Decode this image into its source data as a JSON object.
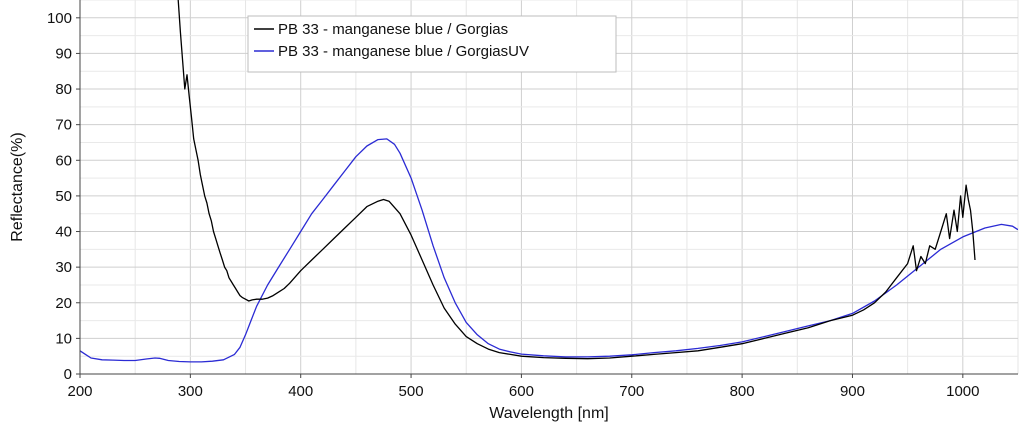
{
  "chart_data": {
    "type": "line",
    "title": "",
    "xlabel": "Wavelength [nm]",
    "ylabel": "Reflectance(%)",
    "xlim": [
      200,
      1050
    ],
    "ylim": [
      0,
      105
    ],
    "x_ticks": [
      200,
      300,
      400,
      500,
      600,
      700,
      800,
      900,
      1000
    ],
    "y_ticks": [
      0,
      10,
      20,
      30,
      40,
      50,
      60,
      70,
      80,
      90,
      100
    ],
    "grid": true,
    "legend_position": "top-left",
    "series": [
      {
        "name": "PB 33 - manganese blue / Gorgias",
        "color": "#000000",
        "points": [
          [
            289,
            105
          ],
          [
            291,
            96
          ],
          [
            293,
            88
          ],
          [
            295,
            80
          ],
          [
            297,
            84
          ],
          [
            299,
            78
          ],
          [
            301,
            72
          ],
          [
            303,
            66
          ],
          [
            305,
            63
          ],
          [
            307,
            60
          ],
          [
            309,
            56
          ],
          [
            311,
            53
          ],
          [
            313,
            50
          ],
          [
            315,
            48
          ],
          [
            317,
            45
          ],
          [
            319,
            43
          ],
          [
            321,
            40
          ],
          [
            323,
            38
          ],
          [
            325,
            36
          ],
          [
            327,
            34
          ],
          [
            329,
            32
          ],
          [
            331,
            30
          ],
          [
            333,
            29
          ],
          [
            335,
            27
          ],
          [
            337,
            26
          ],
          [
            339,
            25
          ],
          [
            341,
            24
          ],
          [
            343,
            23
          ],
          [
            345,
            22
          ],
          [
            347,
            21.5
          ],
          [
            350,
            21
          ],
          [
            353,
            20.5
          ],
          [
            356,
            20.8
          ],
          [
            360,
            21
          ],
          [
            365,
            21
          ],
          [
            370,
            21.3
          ],
          [
            375,
            22
          ],
          [
            380,
            23
          ],
          [
            385,
            24
          ],
          [
            390,
            25.5
          ],
          [
            400,
            29
          ],
          [
            410,
            32
          ],
          [
            420,
            35
          ],
          [
            430,
            38
          ],
          [
            440,
            41
          ],
          [
            450,
            44
          ],
          [
            460,
            47
          ],
          [
            470,
            48.5
          ],
          [
            475,
            49
          ],
          [
            480,
            48.5
          ],
          [
            490,
            45
          ],
          [
            500,
            39
          ],
          [
            510,
            32
          ],
          [
            520,
            25
          ],
          [
            530,
            18.5
          ],
          [
            540,
            14
          ],
          [
            550,
            10.5
          ],
          [
            560,
            8.5
          ],
          [
            570,
            7
          ],
          [
            580,
            6
          ],
          [
            590,
            5.5
          ],
          [
            600,
            5
          ],
          [
            620,
            4.6
          ],
          [
            640,
            4.4
          ],
          [
            660,
            4.3
          ],
          [
            680,
            4.5
          ],
          [
            700,
            5
          ],
          [
            720,
            5.5
          ],
          [
            740,
            6
          ],
          [
            760,
            6.5
          ],
          [
            780,
            7.5
          ],
          [
            800,
            8.5
          ],
          [
            820,
            10
          ],
          [
            840,
            11.5
          ],
          [
            860,
            13
          ],
          [
            880,
            15
          ],
          [
            900,
            16.5
          ],
          [
            910,
            18
          ],
          [
            920,
            20
          ],
          [
            930,
            23
          ],
          [
            940,
            27
          ],
          [
            950,
            31
          ],
          [
            955,
            36
          ],
          [
            958,
            29
          ],
          [
            962,
            33
          ],
          [
            966,
            31
          ],
          [
            970,
            36
          ],
          [
            975,
            35
          ],
          [
            980,
            40
          ],
          [
            985,
            45
          ],
          [
            988,
            38
          ],
          [
            992,
            46
          ],
          [
            995,
            40
          ],
          [
            998,
            50
          ],
          [
            1000,
            44
          ],
          [
            1003,
            53
          ],
          [
            1005,
            49
          ],
          [
            1007,
            46
          ],
          [
            1009,
            40
          ],
          [
            1011,
            32
          ]
        ]
      },
      {
        "name": "PB 33 - manganese blue / GorgiasUV",
        "color": "#2b2bd4",
        "points": [
          [
            200,
            6.5
          ],
          [
            205,
            5.5
          ],
          [
            210,
            4.5
          ],
          [
            220,
            4
          ],
          [
            230,
            3.9
          ],
          [
            240,
            3.8
          ],
          [
            250,
            3.8
          ],
          [
            260,
            4.2
          ],
          [
            268,
            4.5
          ],
          [
            272,
            4.4
          ],
          [
            280,
            3.8
          ],
          [
            290,
            3.5
          ],
          [
            300,
            3.4
          ],
          [
            310,
            3.4
          ],
          [
            320,
            3.6
          ],
          [
            330,
            4
          ],
          [
            340,
            5.5
          ],
          [
            345,
            7.5
          ],
          [
            350,
            11
          ],
          [
            355,
            15
          ],
          [
            360,
            19
          ],
          [
            370,
            25
          ],
          [
            380,
            30
          ],
          [
            390,
            35
          ],
          [
            400,
            40
          ],
          [
            410,
            45
          ],
          [
            420,
            49
          ],
          [
            430,
            53
          ],
          [
            440,
            57
          ],
          [
            450,
            61
          ],
          [
            460,
            64
          ],
          [
            470,
            65.8
          ],
          [
            478,
            66
          ],
          [
            485,
            64.5
          ],
          [
            490,
            62
          ],
          [
            500,
            55
          ],
          [
            510,
            46
          ],
          [
            520,
            36
          ],
          [
            530,
            27
          ],
          [
            540,
            20
          ],
          [
            550,
            14.5
          ],
          [
            560,
            11
          ],
          [
            570,
            8.5
          ],
          [
            580,
            7
          ],
          [
            590,
            6.2
          ],
          [
            600,
            5.6
          ],
          [
            620,
            5.1
          ],
          [
            640,
            4.8
          ],
          [
            660,
            4.8
          ],
          [
            680,
            5
          ],
          [
            700,
            5.4
          ],
          [
            720,
            6
          ],
          [
            740,
            6.5
          ],
          [
            760,
            7.2
          ],
          [
            780,
            8
          ],
          [
            800,
            9
          ],
          [
            820,
            10.5
          ],
          [
            840,
            12
          ],
          [
            860,
            13.5
          ],
          [
            880,
            15
          ],
          [
            900,
            17
          ],
          [
            920,
            20.5
          ],
          [
            940,
            25
          ],
          [
            960,
            30
          ],
          [
            980,
            35
          ],
          [
            1000,
            38.5
          ],
          [
            1020,
            41
          ],
          [
            1035,
            42
          ],
          [
            1045,
            41.5
          ],
          [
            1050,
            40.5
          ]
        ]
      }
    ]
  }
}
